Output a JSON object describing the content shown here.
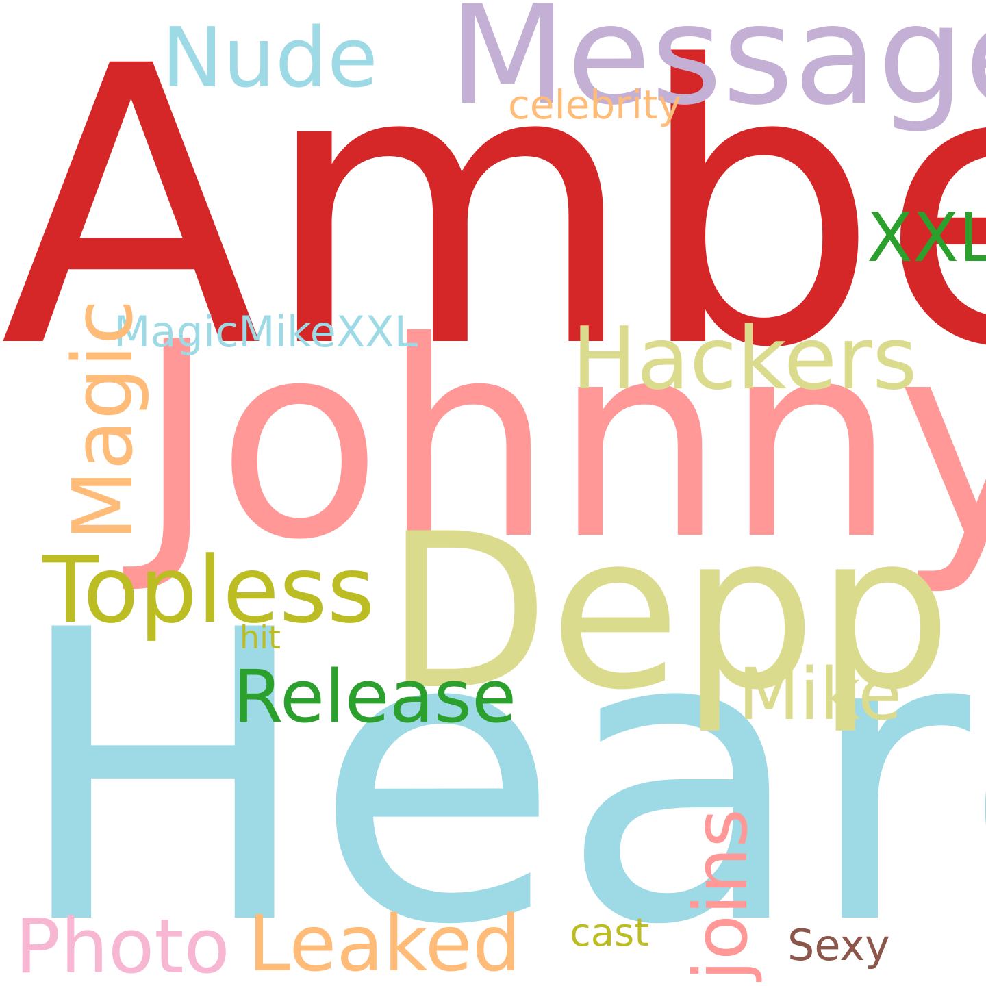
{
  "words": {
    "amber": "Amber",
    "message": "Message",
    "nude": "Nude",
    "celebrity": "celebrity",
    "xxl": "XXL",
    "magicmikexxl": "MagicMikeXXL",
    "hackers": "Hackers",
    "johnny": "Johnny",
    "magic": "Magic",
    "topless": "Topless",
    "depp": "Depp",
    "hit": "hit",
    "release": "Release",
    "mike": "Mike",
    "heard": "Heard",
    "joins": "joins",
    "photo": "Photo",
    "leaked": "Leaked",
    "cast": "cast",
    "sexy": "Sexy"
  },
  "colors": {
    "amber": "#d62728",
    "message": "#c5b0d5",
    "nude": "#9edae5",
    "celebrity": "#ffbb78",
    "xxl": "#2ca02c",
    "magicmikexxl": "#9edae5",
    "hackers": "#dbdb8d",
    "johnny": "#ff9896",
    "magic": "#ffbb78",
    "topless": "#bcbd22",
    "depp": "#dbdb8d",
    "hit": "#bcbd22",
    "release": "#2ca02c",
    "mike": "#dbdb8d",
    "heard": "#9edae5",
    "joins": "#ff9896",
    "photo": "#f7b6d2",
    "leaked": "#ffbb78",
    "cast": "#bcbd22",
    "sexy": "#8c564b"
  }
}
